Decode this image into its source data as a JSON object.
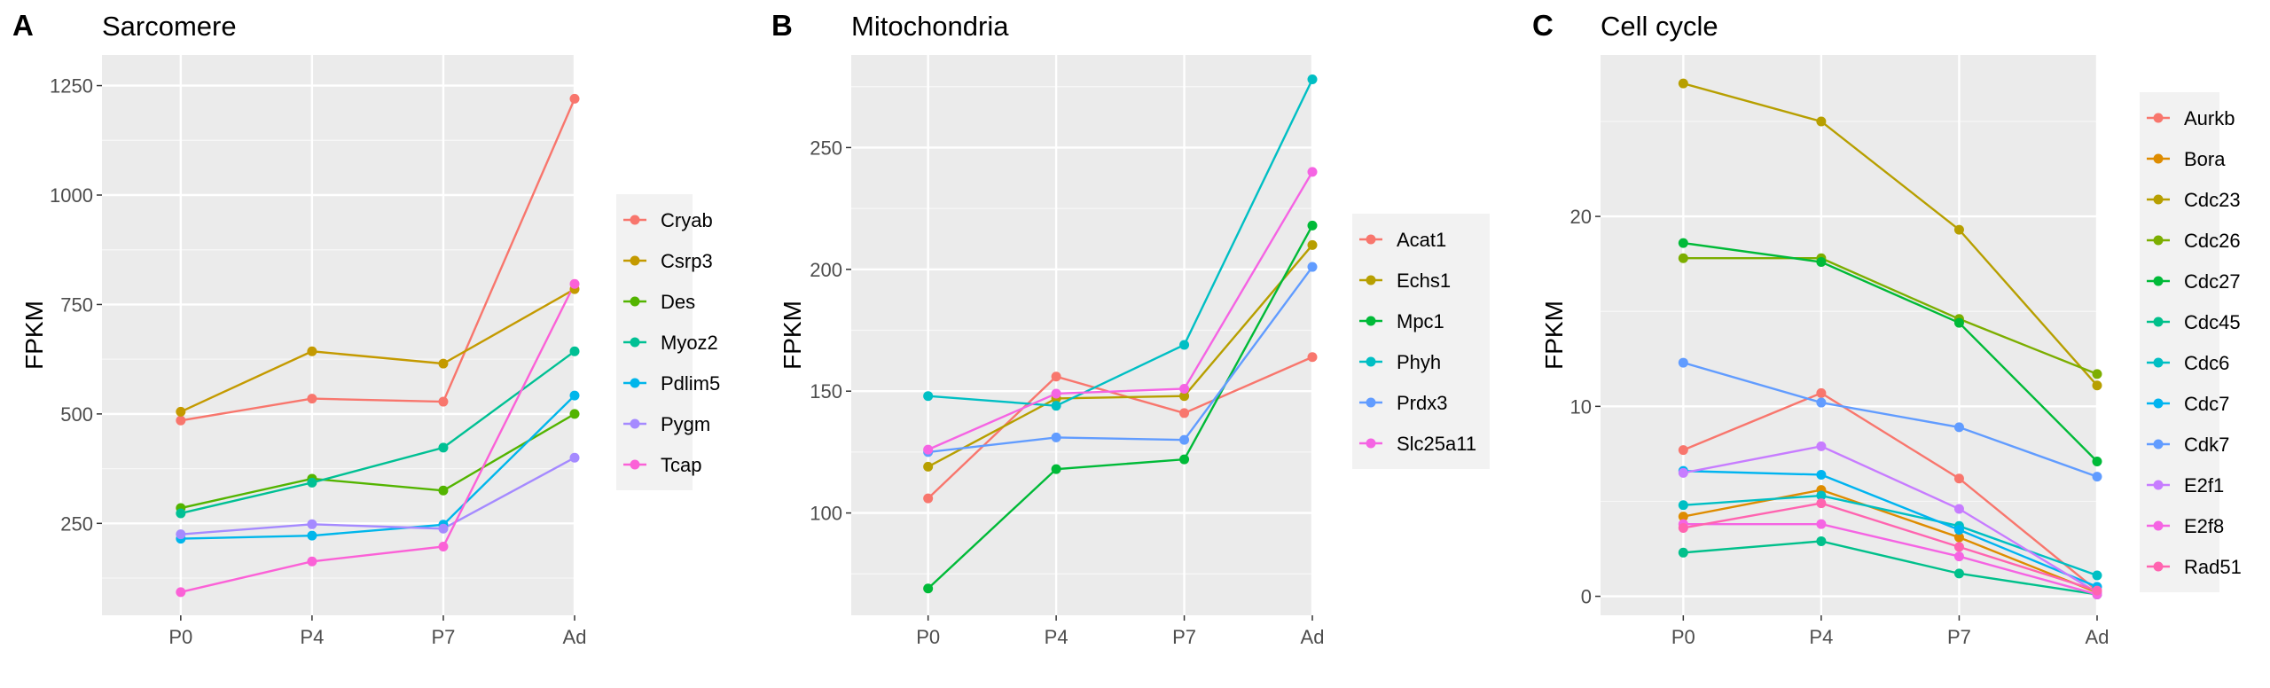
{
  "chart_data": [
    {
      "type": "line",
      "panel_label": "A",
      "title": "Sarcomere",
      "xlabel": "",
      "ylabel": "FPKM",
      "categories": [
        "P0",
        "P4",
        "P7",
        "Ad"
      ],
      "yticks": [
        250,
        500,
        750,
        1000,
        1250
      ],
      "ylim": [
        40,
        1320
      ],
      "grid": true,
      "legend": "right",
      "series": [
        {
          "name": "Cryab",
          "color": "#F8766D",
          "values": [
            485,
            535,
            528,
            1220
          ]
        },
        {
          "name": "Csrp3",
          "color": "#C49A00",
          "values": [
            505,
            643,
            615,
            785
          ]
        },
        {
          "name": "Des",
          "color": "#53B400",
          "values": [
            285,
            352,
            325,
            500
          ]
        },
        {
          "name": "Myoz2",
          "color": "#00C094",
          "values": [
            273,
            343,
            423,
            643
          ]
        },
        {
          "name": "Pdlim5",
          "color": "#00B6EB",
          "values": [
            215,
            222,
            247,
            542
          ]
        },
        {
          "name": "Pygm",
          "color": "#A58AFF",
          "values": [
            225,
            248,
            238,
            400
          ]
        },
        {
          "name": "Tcap",
          "color": "#FB61D7",
          "values": [
            93,
            163,
            197,
            797
          ]
        }
      ]
    },
    {
      "type": "line",
      "panel_label": "B",
      "title": "Mitochondria",
      "xlabel": "",
      "ylabel": "FPKM",
      "categories": [
        "P0",
        "P4",
        "P7",
        "Ad"
      ],
      "yticks": [
        100,
        150,
        200,
        250
      ],
      "ylim": [
        58,
        288
      ],
      "grid": true,
      "legend": "right",
      "series": [
        {
          "name": "Acat1",
          "color": "#F8766D",
          "values": [
            106,
            156,
            141,
            164
          ]
        },
        {
          "name": "Echs1",
          "color": "#B79F00",
          "values": [
            119,
            147,
            148,
            210
          ]
        },
        {
          "name": "Mpc1",
          "color": "#00BA38",
          "values": [
            69,
            118,
            122,
            218
          ]
        },
        {
          "name": "Phyh",
          "color": "#00BFC4",
          "values": [
            148,
            144,
            169,
            278
          ]
        },
        {
          "name": "Prdx3",
          "color": "#619CFF",
          "values": [
            125,
            131,
            130,
            201
          ]
        },
        {
          "name": "Slc25a11",
          "color": "#F564E3",
          "values": [
            126,
            149,
            151,
            240
          ]
        }
      ]
    },
    {
      "type": "line",
      "panel_label": "C",
      "title": "Cell cycle",
      "xlabel": "",
      "ylabel": "FPKM",
      "categories": [
        "P0",
        "P4",
        "P7",
        "Ad"
      ],
      "yticks": [
        0,
        10,
        20
      ],
      "ylim": [
        -1,
        28.5
      ],
      "grid": true,
      "legend": "right",
      "series": [
        {
          "name": "Aurkb",
          "color": "#F8766D",
          "values": [
            7.7,
            10.7,
            6.2,
            0.3
          ]
        },
        {
          "name": "Bora",
          "color": "#DE8C00",
          "values": [
            4.2,
            5.6,
            3.1,
            0.2
          ]
        },
        {
          "name": "Cdc23",
          "color": "#B79F00",
          "values": [
            27.0,
            25.0,
            19.3,
            11.1
          ]
        },
        {
          "name": "Cdc26",
          "color": "#7CAE00",
          "values": [
            17.8,
            17.8,
            14.6,
            11.7
          ]
        },
        {
          "name": "Cdc27",
          "color": "#00BA38",
          "values": [
            18.6,
            17.6,
            14.4,
            7.1
          ]
        },
        {
          "name": "Cdc45",
          "color": "#00C08B",
          "values": [
            2.3,
            2.9,
            1.2,
            0.1
          ]
        },
        {
          "name": "Cdc6",
          "color": "#00BFC4",
          "values": [
            4.8,
            5.3,
            3.7,
            1.1
          ]
        },
        {
          "name": "Cdc7",
          "color": "#00B4F0",
          "values": [
            6.6,
            6.4,
            3.5,
            0.5
          ]
        },
        {
          "name": "Cdk7",
          "color": "#619CFF",
          "values": [
            12.3,
            10.2,
            8.9,
            6.3
          ]
        },
        {
          "name": "E2f1",
          "color": "#C77CFF",
          "values": [
            6.5,
            7.9,
            4.6,
            0.2
          ]
        },
        {
          "name": "E2f8",
          "color": "#F564E3",
          "values": [
            3.8,
            3.8,
            2.1,
            0.1
          ]
        },
        {
          "name": "Rad51",
          "color": "#FF64B0",
          "values": [
            3.6,
            4.9,
            2.6,
            0.3
          ]
        }
      ]
    }
  ]
}
